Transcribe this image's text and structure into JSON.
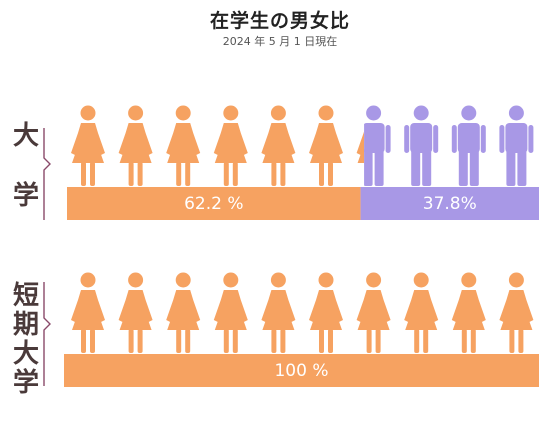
{
  "title": "在学生の男女比",
  "subtitle": "2024 年 5 月 1 日現在",
  "colors": {
    "female": "#f6a261",
    "male": "#a898e6",
    "bracket": "#8a4a6a"
  },
  "chart_data": {
    "type": "bar",
    "title": "在学生の男女比",
    "subtitle": "2024 年 5 月 1 日現在",
    "categories": [
      "大学",
      "短期大学"
    ],
    "series": [
      {
        "name": "女性",
        "values": [
          62.2,
          100
        ]
      },
      {
        "name": "男性",
        "values": [
          37.8,
          0
        ]
      }
    ],
    "labels": [
      {
        "female": "62.2 %",
        "male": "37.8%"
      },
      {
        "female": "100 %",
        "male": ""
      }
    ],
    "icons_per_row": 10,
    "ylim": [
      0,
      100
    ],
    "stacked": true,
    "orientation": "horizontal"
  },
  "groups": [
    {
      "label_lines": [
        "大",
        "学"
      ]
    },
    {
      "label_lines": [
        "短",
        "期",
        "大",
        "学"
      ]
    }
  ]
}
